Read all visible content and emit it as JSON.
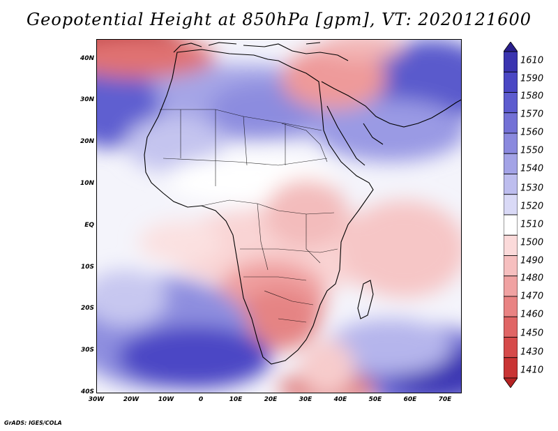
{
  "title": "Geopotential Height at 850hPa [gpm], VT: 2020121600",
  "credit": "GrADS: IGES/COLA",
  "map": {
    "region": "Africa",
    "field": "Geopotential Height at 850hPa",
    "units": "gpm",
    "lat_labels": [
      "40N",
      "30N",
      "20N",
      "10N",
      "EQ",
      "10S",
      "20S",
      "30S",
      "40S"
    ],
    "lon_labels": [
      "30W",
      "20W",
      "10W",
      "0",
      "10E",
      "20E",
      "30E",
      "40E",
      "50E",
      "60E",
      "70E"
    ],
    "lat_range": [
      -40,
      45
    ],
    "lon_range": [
      -30,
      75
    ]
  },
  "colorbar": {
    "labels": [
      "1610",
      "1590",
      "1580",
      "1570",
      "1560",
      "1550",
      "1540",
      "1530",
      "1520",
      "1510",
      "1500",
      "1490",
      "1480",
      "1470",
      "1460",
      "1450",
      "1430",
      "1410"
    ],
    "colors": [
      "#2a1f8c",
      "#3a34b0",
      "#4a47c4",
      "#5d5ccf",
      "#7371d6",
      "#8a89de",
      "#a3a3e6",
      "#bdbdee",
      "#d9d9f6",
      "#ffffff",
      "#fbdada",
      "#f6bfbf",
      "#f0a2a2",
      "#e98383",
      "#e06565",
      "#d64a4a",
      "#c93434",
      "#b52323"
    ]
  }
}
